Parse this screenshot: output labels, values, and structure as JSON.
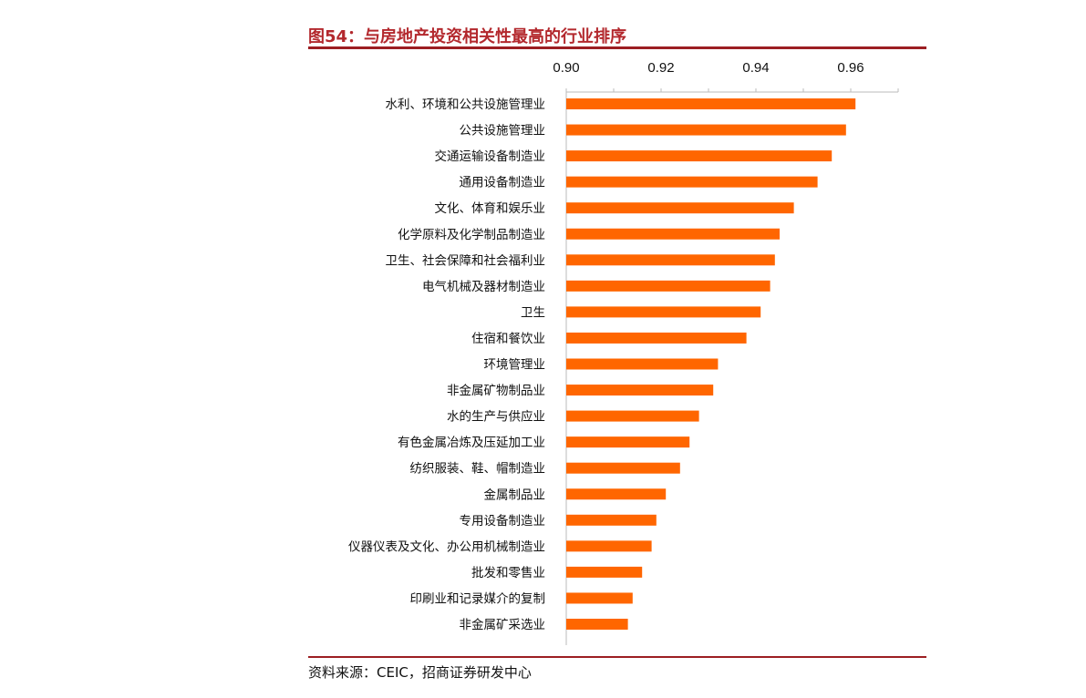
{
  "header": {
    "title": "图54：与房地产投资相关性最高的行业排序",
    "source": "资料来源：CEIC，招商证券研发中心"
  },
  "colors": {
    "bar": "#ff6600",
    "accent": "#9c1e22",
    "title": "#b3282d"
  },
  "chart_data": {
    "type": "bar",
    "orientation": "horizontal",
    "title": "与房地产投资相关性最高的行业排序",
    "xlim": [
      0.9,
      0.97
    ],
    "xticks": [
      0.9,
      0.92,
      0.94,
      0.96
    ],
    "xtick_labels": [
      "0.90",
      "0.92",
      "0.94",
      "0.96"
    ],
    "axis_position": "top",
    "grid": false,
    "categories": [
      "水利、环境和公共设施管理业",
      "公共设施管理业",
      "交通运输设备制造业",
      "通用设备制造业",
      "文化、体育和娱乐业",
      "化学原料及化学制品制造业",
      "卫生、社会保障和社会福利业",
      "电气机械及器材制造业",
      "卫生",
      "住宿和餐饮业",
      "环境管理业",
      "非金属矿物制品业",
      "水的生产与供应业",
      "有色金属冶炼及压延加工业",
      "纺织服装、鞋、帽制造业",
      "金属制品业",
      "专用设备制造业",
      "仪器仪表及文化、办公用机械制造业",
      "批发和零售业",
      "印刷业和记录媒介的复制",
      "非金属矿采选业"
    ],
    "values": [
      0.961,
      0.959,
      0.956,
      0.953,
      0.948,
      0.945,
      0.944,
      0.943,
      0.941,
      0.938,
      0.932,
      0.931,
      0.928,
      0.926,
      0.924,
      0.921,
      0.919,
      0.918,
      0.916,
      0.914,
      0.913
    ]
  }
}
